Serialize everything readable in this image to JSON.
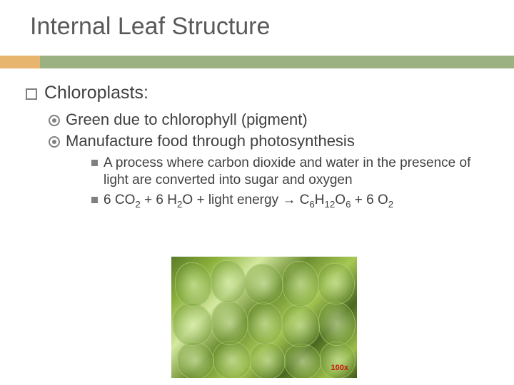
{
  "title": "Internal Leaf Structure",
  "accent": {
    "orange": "#e8b56f",
    "green": "#9bb181"
  },
  "heading": "Chloroplasts:",
  "sub1": "Green due to chlorophyll (pigment)",
  "sub2": "Manufacture food through photosynthesis",
  "detail1": "A process where carbon dioxide and water in the presence of light are converted into sugar and oxygen",
  "equation_html": "6 CO<sub>2</sub> + 6 H<sub>2</sub>O + light energy → C<sub>6</sub>H<sub>12</sub>O<sub>6</sub> + 6 O<sub>2</sub>",
  "image": {
    "scale_label": "100x",
    "scale_color": "#d01010",
    "cells": [
      {
        "l": 5,
        "t": 8,
        "w": 50,
        "h": 60
      },
      {
        "l": 55,
        "t": 5,
        "w": 48,
        "h": 58
      },
      {
        "l": 103,
        "t": 10,
        "w": 52,
        "h": 55
      },
      {
        "l": 155,
        "t": 6,
        "w": 50,
        "h": 62
      },
      {
        "l": 205,
        "t": 9,
        "w": 50,
        "h": 56
      },
      {
        "l": 2,
        "t": 65,
        "w": 54,
        "h": 58
      },
      {
        "l": 56,
        "t": 62,
        "w": 50,
        "h": 60
      },
      {
        "l": 106,
        "t": 64,
        "w": 48,
        "h": 57
      },
      {
        "l": 154,
        "t": 67,
        "w": 52,
        "h": 58
      },
      {
        "l": 206,
        "t": 63,
        "w": 50,
        "h": 60
      },
      {
        "l": 8,
        "t": 120,
        "w": 50,
        "h": 50
      },
      {
        "l": 58,
        "t": 118,
        "w": 52,
        "h": 52
      },
      {
        "l": 110,
        "t": 120,
        "w": 48,
        "h": 50
      },
      {
        "l": 158,
        "t": 122,
        "w": 50,
        "h": 48
      },
      {
        "l": 208,
        "t": 119,
        "w": 48,
        "h": 50
      }
    ]
  }
}
